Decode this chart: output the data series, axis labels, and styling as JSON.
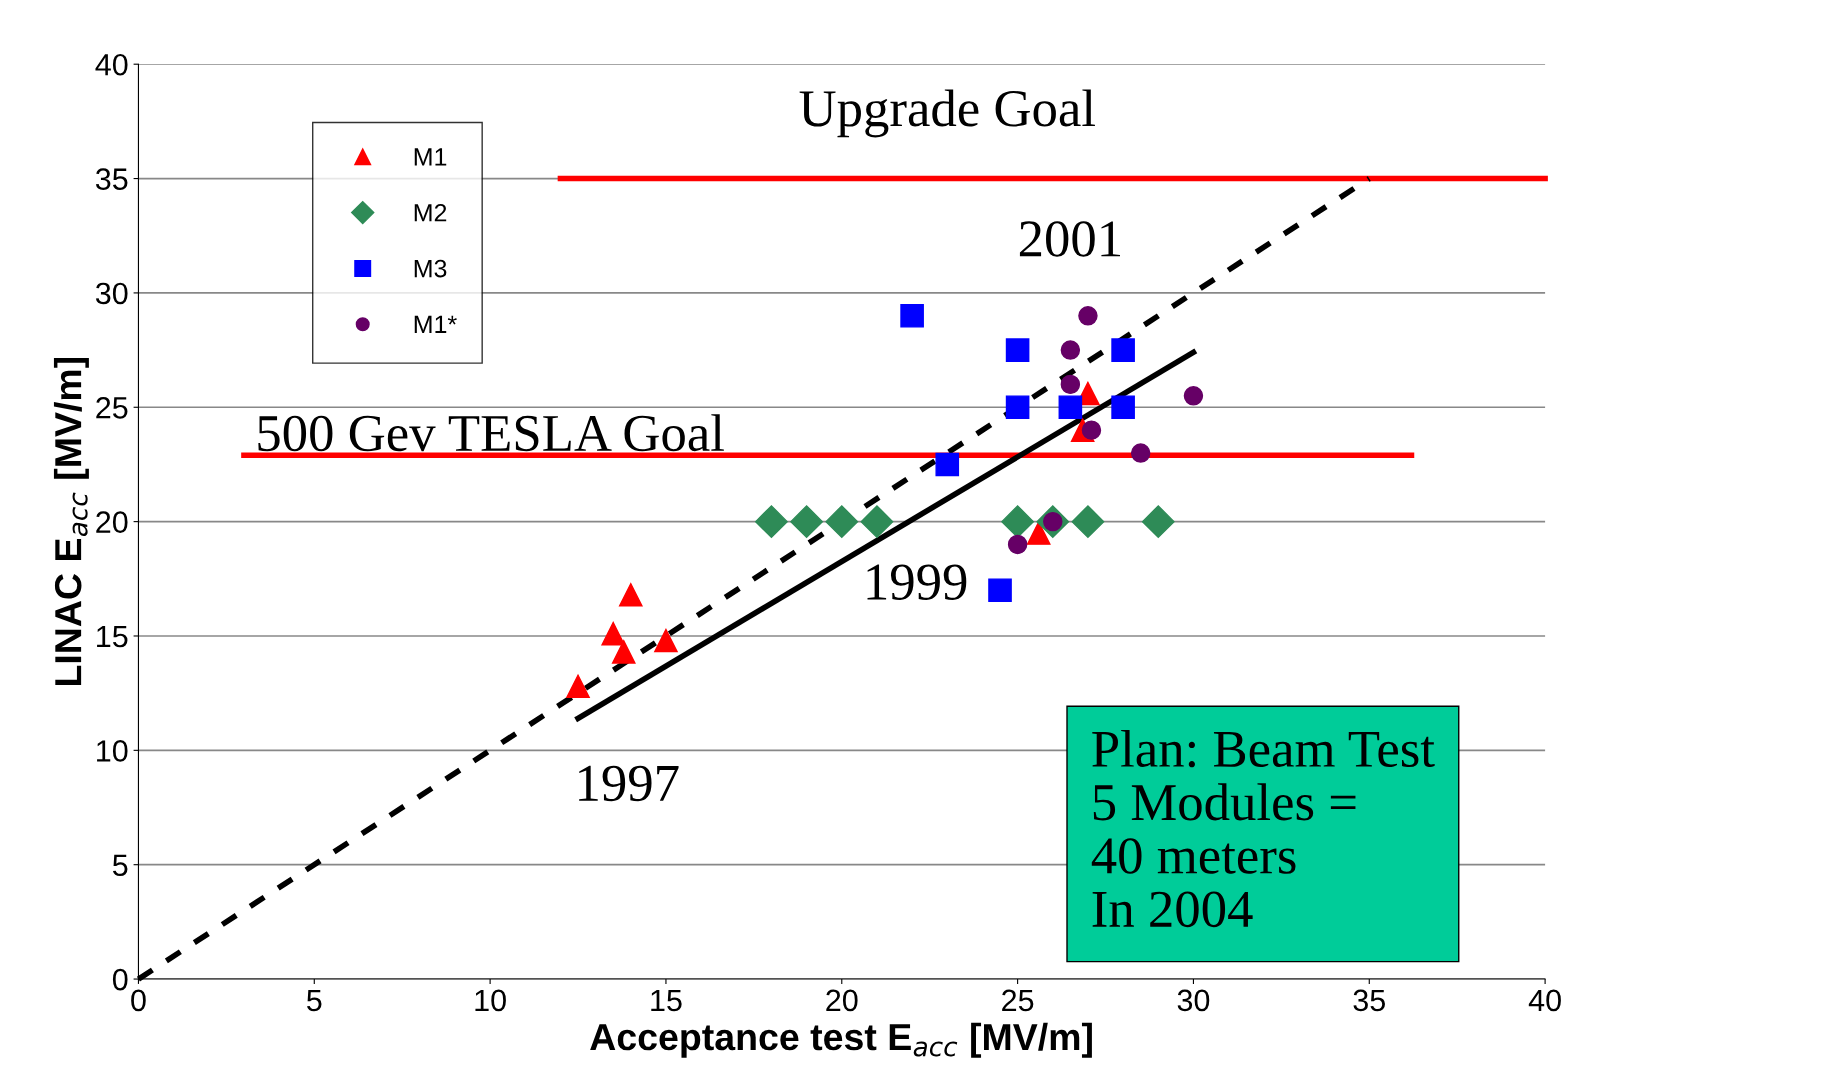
{
  "chart_data": {
    "type": "scatter",
    "xlabel": "Acceptance test E$_{acc}$ [MV/m]",
    "ylabel": "LINAC E$_{acc}$ [MV/m]",
    "xlim": [
      0,
      40
    ],
    "ylim": [
      0,
      40
    ],
    "xticks": [
      0,
      5,
      10,
      15,
      20,
      25,
      30,
      35,
      40
    ],
    "yticks": [
      0,
      5,
      10,
      15,
      20,
      25,
      30,
      35,
      40
    ],
    "grid": "y",
    "legend": "top left",
    "series": [
      {
        "name": "M1",
        "color": "#ff0000",
        "marker": "triangle",
        "x": [
          12.5,
          13.5,
          13.8,
          14,
          15,
          25.6,
          26.85,
          27
        ],
        "values": [
          12.8,
          15.1,
          14.3,
          16.8,
          14.8,
          19.5,
          24,
          25.6
        ]
      },
      {
        "name": "M2",
        "color": "#2e8b57",
        "marker": "diamond",
        "x": [
          18,
          19,
          20,
          21,
          25,
          26,
          27,
          29
        ],
        "values": [
          20,
          20,
          20,
          20,
          20,
          20,
          20,
          20
        ]
      },
      {
        "name": "M3",
        "color": "#0000ff",
        "marker": "square",
        "x": [
          22,
          25,
          28,
          25,
          26.5,
          28,
          23,
          24.5
        ],
        "values": [
          29,
          27.5,
          27.5,
          25,
          25,
          25,
          22.5,
          17
        ]
      },
      {
        "name": "M1*",
        "color": "#660066",
        "marker": "circle",
        "x": [
          27,
          26.5,
          26.5,
          27.1,
          28.5,
          30,
          26,
          25
        ],
        "values": [
          29,
          27.5,
          26,
          24,
          23,
          25.5,
          20,
          19
        ]
      },
      {
        "type": "line",
        "color": "#ff0000",
        "line_style": "solid",
        "x": [
          12,
          40
        ],
        "values": [
          35,
          35
        ]
      },
      {
        "type": "line",
        "color": "#ff0000",
        "line_style": "solid",
        "x": [
          3,
          36.2
        ],
        "values": [
          22.9,
          22.9
        ]
      },
      {
        "type": "line",
        "color": "#000000",
        "line_style": "dashed",
        "x": [
          0,
          35
        ],
        "values": [
          0,
          35
        ]
      },
      {
        "type": "line",
        "color": "#000000",
        "line_style": "solid",
        "x": [
          12.5,
          30
        ],
        "values": [
          11.4,
          27.4
        ]
      }
    ],
    "annotations": [
      {
        "text": "Upgrade Goal",
        "x": 23,
        "y": 35
      },
      {
        "text": "500 Gev TESLA Goal",
        "x": 10,
        "y": 22.9
      },
      "1997",
      "1999",
      "2001",
      "Plan: Beam Test\n5 Modules =\n40 meters\nIn 2004"
    ]
  }
}
